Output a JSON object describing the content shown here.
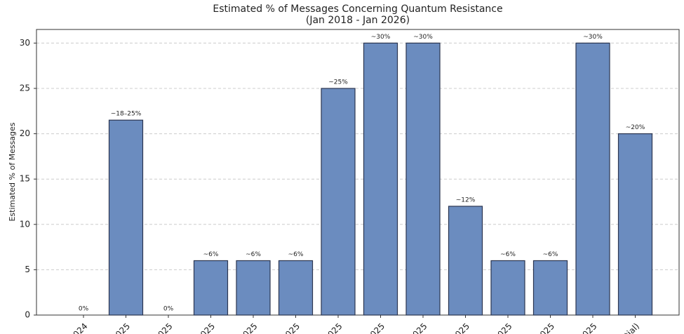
{
  "chart_data": {
    "type": "bar",
    "title": "Estimated % of Messages Concerning Quantum Resistance",
    "subtitle": "(Jan 2018 - Jan 2026)",
    "y_label": "Estimated % of Messages",
    "categories": [
      "024",
      "025",
      "025",
      "025",
      "025",
      "025",
      "025",
      "025",
      "025",
      "025",
      "025",
      "025",
      "025",
      "tial)"
    ],
    "values": [
      0,
      21.5,
      0,
      6,
      6,
      6,
      25,
      30,
      30,
      12,
      6,
      6,
      30,
      20
    ],
    "value_labels": [
      "0%",
      "~18–25%",
      "0%",
      "~6%",
      "~6%",
      "~6%",
      "~25%",
      "~30%",
      "~30%",
      "~12%",
      "~6%",
      "~6%",
      "~30%",
      "~20%"
    ],
    "color": "#6b8cbf",
    "ylim": [
      0,
      31.5
    ],
    "yticks": [
      0,
      5,
      10,
      15,
      20,
      25,
      30
    ],
    "grid": true
  }
}
